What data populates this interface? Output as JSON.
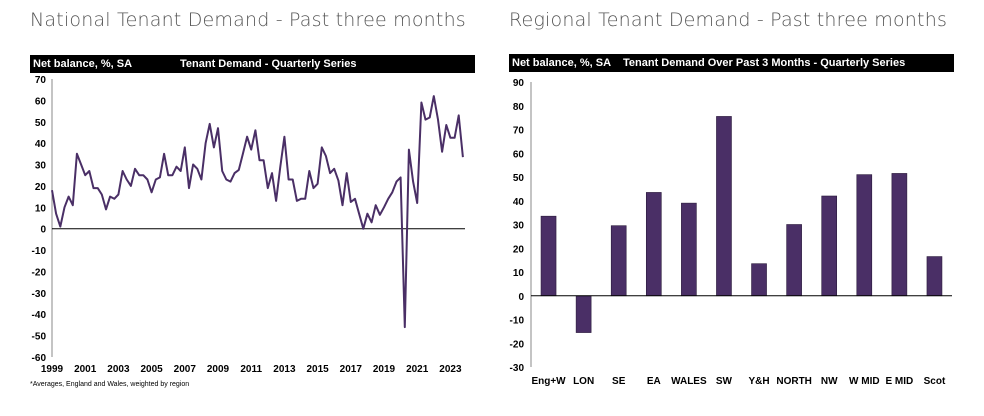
{
  "left": {
    "page_title": "National Tenant Demand - Past three months",
    "footnote": "*Averages, England and Wales, weighted by region"
  },
  "right": {
    "page_title": "Regional Tenant Demand - Past three months"
  },
  "colors": {
    "series": "#4a2f66",
    "header": "#000000"
  },
  "chart_data": [
    {
      "type": "line",
      "title": "Tenant Demand - Quarterly Series",
      "ylabel": "Net balance, %, SA",
      "xlabel": "",
      "ylim": [
        -60,
        70
      ],
      "yticks": [
        "70",
        "60",
        "50",
        "40",
        "30",
        "20",
        "10",
        "0",
        "-10",
        "-20",
        "-30",
        "-40",
        "-50",
        "-60"
      ],
      "xticks": [
        "1999",
        "2001",
        "2003",
        "2005",
        "2007",
        "2009",
        "2011",
        "2013",
        "2015",
        "2017",
        "2019",
        "2021",
        "2023"
      ],
      "x_start": 1999,
      "x_step": 0.25,
      "series": [
        {
          "name": "Tenant Demand",
          "values": [
            18,
            7,
            1,
            10,
            15,
            11,
            35,
            30,
            25,
            27,
            19,
            19,
            16,
            9,
            15,
            14,
            16,
            27,
            23,
            20,
            28,
            25,
            25,
            23,
            17,
            23,
            24,
            35,
            25,
            25,
            29,
            27,
            38,
            19,
            30,
            28,
            23,
            40,
            49,
            38,
            47,
            27,
            23,
            22,
            26,
            27.5,
            35,
            43,
            37,
            46,
            32,
            32,
            19,
            26,
            13,
            29,
            43,
            23,
            23,
            13,
            14,
            14,
            27,
            19,
            21,
            38,
            34,
            26,
            28,
            22.5,
            11,
            26,
            12.5,
            14,
            7,
            0,
            7,
            3,
            11,
            6.5,
            10,
            14,
            17,
            22,
            24,
            -46,
            37,
            22,
            12,
            59,
            51,
            52,
            62,
            51,
            36,
            48.5,
            42.5,
            42.5,
            53,
            33.5
          ]
        }
      ]
    },
    {
      "type": "bar",
      "title": "Tenant Demand Over Past 3 Months - Quarterly Series",
      "ylabel": "Net balance, %, SA",
      "xlabel": "",
      "ylim": [
        -30,
        90
      ],
      "yticks": [
        "90",
        "80",
        "70",
        "60",
        "50",
        "40",
        "30",
        "20",
        "10",
        "0",
        "-10",
        "-20",
        "-30"
      ],
      "categories": [
        "Eng+W",
        "LON",
        "SE",
        "EA",
        "WALES",
        "SW",
        "Y&H",
        "NORTH",
        "NW",
        "W MID",
        "E MID",
        "Scot"
      ],
      "values": [
        33.5,
        -15.5,
        29.5,
        43.5,
        39,
        75.5,
        13.5,
        30,
        42,
        51,
        51.5,
        16.5
      ]
    }
  ]
}
